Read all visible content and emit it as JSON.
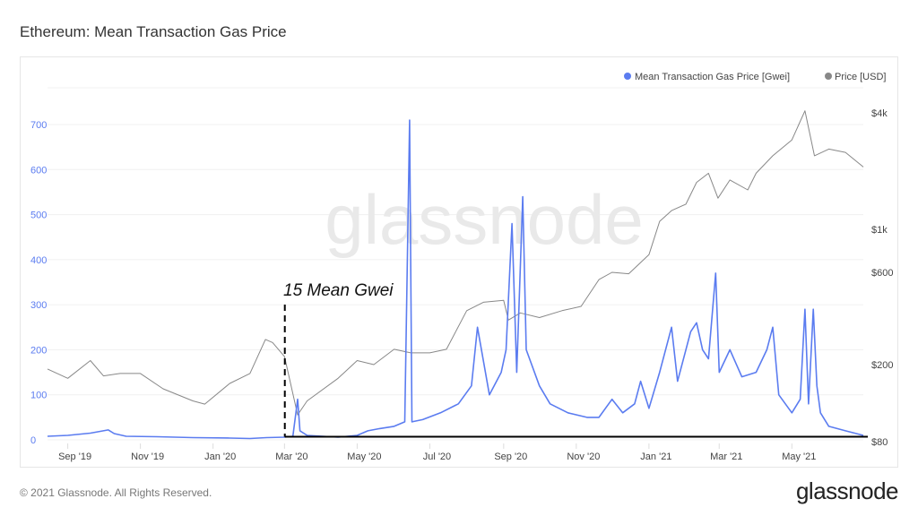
{
  "title": "Ethereum: Mean Transaction Gas Price",
  "footer": "© 2021 Glassnode. All Rights Reserved.",
  "logo": "glassnode",
  "watermark": "glassnode",
  "colors": {
    "gas": "#5b7cf0",
    "price": "#888888",
    "annotation": "#000000"
  },
  "chart_data": {
    "type": "line",
    "title": "Ethereum: Mean Transaction Gas Price",
    "legend": {
      "placement": "top-right",
      "entries": [
        "Mean Transaction Gas Price [Gwei]",
        "Price [USD]"
      ]
    },
    "x_ticks": [
      {
        "date": "2019-09-01",
        "label": "Sep '19"
      },
      {
        "date": "2019-11-01",
        "label": "Nov '19"
      },
      {
        "date": "2020-01-01",
        "label": "Jan '20"
      },
      {
        "date": "2020-03-01",
        "label": "Mar '20"
      },
      {
        "date": "2020-05-01",
        "label": "May '20"
      },
      {
        "date": "2020-07-01",
        "label": "Jul '20"
      },
      {
        "date": "2020-09-01",
        "label": "Sep '20"
      },
      {
        "date": "2020-11-01",
        "label": "Nov '20"
      },
      {
        "date": "2021-01-01",
        "label": "Jan '21"
      },
      {
        "date": "2021-03-01",
        "label": "Mar '21"
      },
      {
        "date": "2021-05-01",
        "label": "May '21"
      }
    ],
    "xlim": [
      "2019-08-15",
      "2021-06-30"
    ],
    "y_left": {
      "ylim": [
        0,
        700
      ],
      "scale": "linear",
      "ticks": [
        0,
        100,
        200,
        300,
        400,
        500,
        600,
        700
      ],
      "grid": true
    },
    "y_right": {
      "ylim": [
        80,
        4000
      ],
      "scale": "log",
      "ticks": [
        {
          "v": 80,
          "label": "$80"
        },
        {
          "v": 200,
          "label": "$200"
        },
        {
          "v": 600,
          "label": "$600"
        },
        {
          "v": 1000,
          "label": "$1k"
        },
        {
          "v": 4000,
          "label": "$4k"
        }
      ]
    },
    "series": [
      {
        "name": "Mean Transaction Gas Price [Gwei]",
        "axis": "left",
        "points": [
          [
            "2019-08-15",
            8
          ],
          [
            "2019-09-01",
            10
          ],
          [
            "2019-09-20",
            15
          ],
          [
            "2019-10-05",
            22
          ],
          [
            "2019-10-10",
            14
          ],
          [
            "2019-10-20",
            8
          ],
          [
            "2019-11-15",
            7
          ],
          [
            "2019-12-15",
            5
          ],
          [
            "2020-01-15",
            4
          ],
          [
            "2020-02-01",
            3
          ],
          [
            "2020-02-15",
            5
          ],
          [
            "2020-03-01",
            6
          ],
          [
            "2020-03-08",
            8
          ],
          [
            "2020-03-12",
            90
          ],
          [
            "2020-03-14",
            20
          ],
          [
            "2020-03-20",
            10
          ],
          [
            "2020-04-15",
            6
          ],
          [
            "2020-05-01",
            10
          ],
          [
            "2020-05-10",
            20
          ],
          [
            "2020-05-20",
            25
          ],
          [
            "2020-06-01",
            30
          ],
          [
            "2020-06-10",
            40
          ],
          [
            "2020-06-14",
            710
          ],
          [
            "2020-06-16",
            40
          ],
          [
            "2020-06-25",
            45
          ],
          [
            "2020-07-10",
            60
          ],
          [
            "2020-07-25",
            80
          ],
          [
            "2020-08-05",
            120
          ],
          [
            "2020-08-10",
            250
          ],
          [
            "2020-08-20",
            100
          ],
          [
            "2020-08-30",
            150
          ],
          [
            "2020-09-03",
            200
          ],
          [
            "2020-09-08",
            480
          ],
          [
            "2020-09-12",
            150
          ],
          [
            "2020-09-17",
            540
          ],
          [
            "2020-09-20",
            200
          ],
          [
            "2020-10-01",
            120
          ],
          [
            "2020-10-10",
            80
          ],
          [
            "2020-10-25",
            60
          ],
          [
            "2020-11-10",
            50
          ],
          [
            "2020-11-20",
            50
          ],
          [
            "2020-12-01",
            90
          ],
          [
            "2020-12-10",
            60
          ],
          [
            "2020-12-20",
            80
          ],
          [
            "2020-12-25",
            130
          ],
          [
            "2021-01-01",
            70
          ],
          [
            "2021-01-10",
            150
          ],
          [
            "2021-01-20",
            250
          ],
          [
            "2021-01-25",
            130
          ],
          [
            "2021-02-01",
            200
          ],
          [
            "2021-02-05",
            240
          ],
          [
            "2021-02-10",
            260
          ],
          [
            "2021-02-15",
            200
          ],
          [
            "2021-02-20",
            180
          ],
          [
            "2021-02-26",
            370
          ],
          [
            "2021-03-01",
            150
          ],
          [
            "2021-03-10",
            200
          ],
          [
            "2021-03-20",
            140
          ],
          [
            "2021-04-01",
            150
          ],
          [
            "2021-04-10",
            200
          ],
          [
            "2021-04-15",
            250
          ],
          [
            "2021-04-20",
            100
          ],
          [
            "2021-05-01",
            60
          ],
          [
            "2021-05-08",
            90
          ],
          [
            "2021-05-12",
            290
          ],
          [
            "2021-05-15",
            80
          ],
          [
            "2021-05-19",
            290
          ],
          [
            "2021-05-22",
            120
          ],
          [
            "2021-05-25",
            60
          ],
          [
            "2021-06-01",
            30
          ],
          [
            "2021-06-15",
            20
          ],
          [
            "2021-06-30",
            10
          ]
        ]
      },
      {
        "name": "Price [USD]",
        "axis": "right",
        "points": [
          [
            "2019-08-15",
            190
          ],
          [
            "2019-09-01",
            170
          ],
          [
            "2019-09-20",
            210
          ],
          [
            "2019-10-01",
            175
          ],
          [
            "2019-10-15",
            180
          ],
          [
            "2019-11-01",
            180
          ],
          [
            "2019-11-20",
            150
          ],
          [
            "2019-12-15",
            130
          ],
          [
            "2019-12-25",
            125
          ],
          [
            "2020-01-15",
            160
          ],
          [
            "2020-02-01",
            180
          ],
          [
            "2020-02-14",
            270
          ],
          [
            "2020-02-20",
            260
          ],
          [
            "2020-03-01",
            220
          ],
          [
            "2020-03-12",
            110
          ],
          [
            "2020-03-20",
            130
          ],
          [
            "2020-04-15",
            170
          ],
          [
            "2020-05-01",
            210
          ],
          [
            "2020-05-15",
            200
          ],
          [
            "2020-06-01",
            240
          ],
          [
            "2020-06-15",
            230
          ],
          [
            "2020-07-01",
            230
          ],
          [
            "2020-07-15",
            240
          ],
          [
            "2020-08-01",
            380
          ],
          [
            "2020-08-15",
            420
          ],
          [
            "2020-09-01",
            430
          ],
          [
            "2020-09-05",
            340
          ],
          [
            "2020-09-15",
            370
          ],
          [
            "2020-10-01",
            350
          ],
          [
            "2020-10-20",
            380
          ],
          [
            "2020-11-05",
            400
          ],
          [
            "2020-11-20",
            550
          ],
          [
            "2020-12-01",
            600
          ],
          [
            "2020-12-15",
            590
          ],
          [
            "2021-01-01",
            740
          ],
          [
            "2021-01-10",
            1100
          ],
          [
            "2021-01-20",
            1250
          ],
          [
            "2021-02-01",
            1350
          ],
          [
            "2021-02-10",
            1750
          ],
          [
            "2021-02-20",
            1950
          ],
          [
            "2021-02-28",
            1450
          ],
          [
            "2021-03-10",
            1800
          ],
          [
            "2021-03-25",
            1600
          ],
          [
            "2021-04-01",
            1950
          ],
          [
            "2021-04-15",
            2400
          ],
          [
            "2021-05-01",
            2900
          ],
          [
            "2021-05-12",
            4100
          ],
          [
            "2021-05-20",
            2400
          ],
          [
            "2021-06-01",
            2600
          ],
          [
            "2021-06-15",
            2500
          ],
          [
            "2021-06-30",
            2100
          ]
        ]
      }
    ],
    "annotations": [
      {
        "text": "15 Mean Gwei",
        "vertical_line_date": "2020-02-28",
        "horizontal_level_gwei": 15,
        "from": "2020-02-28",
        "to": "2021-06-30"
      }
    ]
  }
}
